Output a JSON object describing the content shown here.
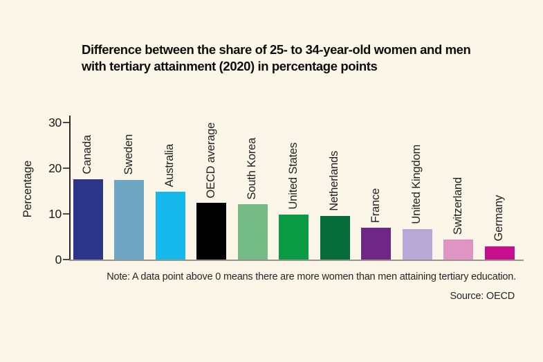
{
  "title": {
    "line1": "Difference between the share of 25- to 34-year-old women and men",
    "line2": "with tertiary attainment (2020) in percentage points"
  },
  "footer": {
    "note": "Note: A data point above 0 means there are more women than men attaining tertiary education.",
    "source": "Source: OECD"
  },
  "colors": {
    "background": "#FBF6E8",
    "axis": "#2b2b2b",
    "baseline": "#9a948a",
    "text": "#1a1a1a"
  },
  "chart_data": {
    "type": "bar",
    "title": "Difference between the share of 25- to 34-year-old women and men with tertiary attainment (2020) in percentage points",
    "xlabel": "",
    "ylabel": "Percentage",
    "ylim": [
      0,
      30
    ],
    "yticks": [
      0,
      10,
      20,
      30
    ],
    "grid": false,
    "legend": false,
    "categories": [
      "Canada",
      "Sweden",
      "Australia",
      "OECD average",
      "South Korea",
      "United States",
      "Netherlands",
      "France",
      "United Kingdom",
      "Switzerland",
      "Germany"
    ],
    "values": [
      17.6,
      17.5,
      14.8,
      12.4,
      12.1,
      9.9,
      9.6,
      6.9,
      6.7,
      4.4,
      2.9
    ],
    "bar_colors": [
      "#2B3589",
      "#6FA6C3",
      "#17B8EC",
      "#000000",
      "#74BB85",
      "#0B9B44",
      "#066B3B",
      "#6E2786",
      "#B7A8D5",
      "#E094C4",
      "#C70F8E"
    ],
    "note": "Note: A data point above 0 means there are more women than men attaining tertiary education.",
    "source": "Source: OECD"
  }
}
